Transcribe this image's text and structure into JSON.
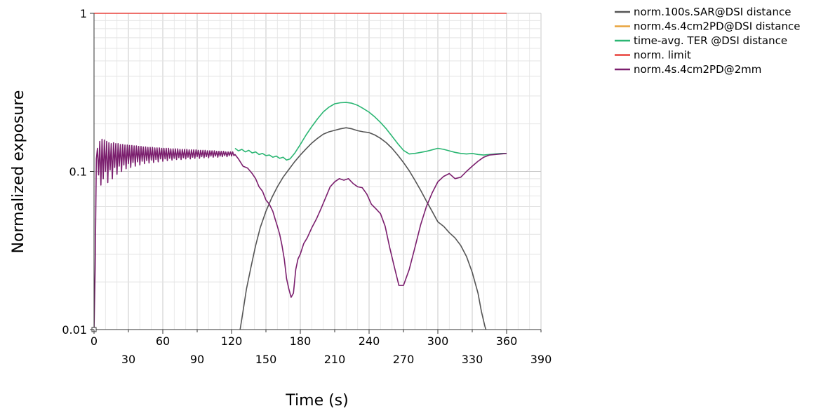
{
  "chart_data": {
    "type": "line",
    "xlabel": "Time (s)",
    "ylabel": "Normalized exposure",
    "xlim": [
      0,
      390
    ],
    "ylim": [
      0.01,
      1
    ],
    "yscale": "log",
    "grid": true,
    "legend_position": "top-right",
    "x_ticks_major": [
      0,
      60,
      120,
      180,
      240,
      300,
      360
    ],
    "x_ticks_minor": [
      30,
      90,
      150,
      210,
      270,
      330,
      390
    ],
    "y_ticks": [
      {
        "value": 0.01,
        "label": "0.01"
      },
      {
        "value": 0.1,
        "label": "0.1"
      },
      {
        "value": 1,
        "label": "1"
      }
    ],
    "series": [
      {
        "name": "norm.100s.SAR@DSI distance",
        "color": "#555555",
        "x": [
          127,
          130,
          133,
          137,
          141,
          145,
          150,
          155,
          160,
          165,
          170,
          175,
          180,
          185,
          190,
          195,
          200,
          205,
          210,
          215,
          220,
          225,
          230,
          235,
          240,
          245,
          250,
          255,
          260,
          265,
          270,
          275,
          280,
          285,
          290,
          295,
          300,
          305,
          310,
          315,
          320,
          325,
          330,
          335,
          338,
          341,
          344
        ],
        "y": [
          0.0095,
          0.013,
          0.018,
          0.025,
          0.034,
          0.044,
          0.056,
          0.068,
          0.08,
          0.092,
          0.103,
          0.115,
          0.127,
          0.139,
          0.151,
          0.162,
          0.172,
          0.178,
          0.182,
          0.186,
          0.189,
          0.186,
          0.181,
          0.178,
          0.176,
          0.17,
          0.162,
          0.152,
          0.14,
          0.127,
          0.114,
          0.101,
          0.088,
          0.076,
          0.065,
          0.056,
          0.048,
          0.045,
          0.041,
          0.038,
          0.034,
          0.029,
          0.023,
          0.017,
          0.013,
          0.0105,
          0.009
        ]
      },
      {
        "name": "norm.4s.4cm2PD@DSI distance",
        "color": "#e8a33d",
        "x": [],
        "y": []
      },
      {
        "name": "time-avg. TER @DSI distance",
        "color": "#2bb673",
        "x": [
          123,
          126,
          129,
          132,
          135,
          138,
          141,
          144,
          147,
          150,
          153,
          156,
          159,
          162,
          165,
          168,
          171,
          175,
          180,
          185,
          190,
          195,
          200,
          205,
          210,
          215,
          220,
          225,
          230,
          235,
          240,
          245,
          250,
          255,
          260,
          265,
          270,
          275,
          280,
          285,
          290,
          295,
          300,
          305,
          310,
          315,
          320,
          325,
          330,
          335,
          340,
          345,
          350,
          355,
          360
        ],
        "y": [
          0.14,
          0.135,
          0.138,
          0.133,
          0.136,
          0.131,
          0.133,
          0.128,
          0.13,
          0.126,
          0.127,
          0.123,
          0.125,
          0.121,
          0.123,
          0.118,
          0.12,
          0.13,
          0.148,
          0.17,
          0.192,
          0.215,
          0.238,
          0.255,
          0.268,
          0.272,
          0.273,
          0.27,
          0.262,
          0.25,
          0.237,
          0.221,
          0.204,
          0.186,
          0.167,
          0.15,
          0.136,
          0.129,
          0.13,
          0.132,
          0.134,
          0.137,
          0.14,
          0.138,
          0.135,
          0.132,
          0.13,
          0.129,
          0.13,
          0.128,
          0.127,
          0.128,
          0.129,
          0.13,
          0.13
        ]
      },
      {
        "name": "norm. limit",
        "color": "#e8403a",
        "x": [
          0,
          360
        ],
        "y": [
          1,
          1
        ]
      },
      {
        "name": "norm.4s.4cm2PD@2mm",
        "color": "#7b1f6e",
        "x": [
          0,
          1,
          2,
          3,
          4,
          5,
          6,
          7,
          8,
          9,
          10,
          11,
          12,
          13,
          14,
          15,
          16,
          17,
          18,
          19,
          20,
          21,
          22,
          23,
          24,
          25,
          26,
          27,
          28,
          29,
          30,
          31,
          32,
          33,
          34,
          35,
          36,
          37,
          38,
          39,
          40,
          41,
          42,
          43,
          44,
          45,
          46,
          47,
          48,
          49,
          50,
          51,
          52,
          53,
          54,
          55,
          56,
          57,
          58,
          59,
          60,
          61,
          62,
          63,
          64,
          65,
          66,
          67,
          68,
          69,
          70,
          71,
          72,
          73,
          74,
          75,
          76,
          77,
          78,
          79,
          80,
          81,
          82,
          83,
          84,
          85,
          86,
          87,
          88,
          89,
          90,
          91,
          92,
          93,
          94,
          95,
          96,
          97,
          98,
          99,
          100,
          101,
          102,
          103,
          104,
          105,
          106,
          107,
          108,
          109,
          110,
          111,
          112,
          113,
          114,
          115,
          116,
          117,
          118,
          119,
          120,
          121,
          122,
          123,
          126,
          130,
          134,
          138,
          141,
          144,
          147,
          150,
          153,
          156,
          158,
          160,
          162,
          164,
          166,
          168,
          170,
          172,
          174,
          176,
          178,
          180,
          183,
          186,
          190,
          194,
          198,
          202,
          206,
          210,
          214,
          218,
          222,
          226,
          230,
          234,
          238,
          242,
          246,
          250,
          254,
          258,
          262,
          266,
          270,
          275,
          280,
          285,
          290,
          295,
          300,
          305,
          310,
          315,
          320,
          325,
          330,
          335,
          340,
          345,
          350,
          355,
          360
        ],
        "y": [
          0.01,
          0.024,
          0.12,
          0.14,
          0.095,
          0.155,
          0.082,
          0.16,
          0.09,
          0.158,
          0.1,
          0.155,
          0.085,
          0.152,
          0.102,
          0.15,
          0.09,
          0.152,
          0.106,
          0.15,
          0.096,
          0.15,
          0.108,
          0.148,
          0.1,
          0.148,
          0.11,
          0.147,
          0.104,
          0.147,
          0.112,
          0.146,
          0.106,
          0.146,
          0.114,
          0.145,
          0.108,
          0.145,
          0.115,
          0.144,
          0.11,
          0.144,
          0.116,
          0.143,
          0.112,
          0.143,
          0.117,
          0.142,
          0.113,
          0.142,
          0.118,
          0.142,
          0.114,
          0.141,
          0.119,
          0.141,
          0.115,
          0.141,
          0.12,
          0.14,
          0.116,
          0.14,
          0.12,
          0.14,
          0.117,
          0.14,
          0.121,
          0.139,
          0.118,
          0.139,
          0.121,
          0.139,
          0.119,
          0.139,
          0.122,
          0.138,
          0.119,
          0.138,
          0.122,
          0.138,
          0.12,
          0.138,
          0.123,
          0.137,
          0.12,
          0.137,
          0.123,
          0.137,
          0.121,
          0.137,
          0.124,
          0.136,
          0.121,
          0.136,
          0.124,
          0.136,
          0.122,
          0.136,
          0.124,
          0.135,
          0.122,
          0.135,
          0.125,
          0.135,
          0.123,
          0.135,
          0.125,
          0.134,
          0.123,
          0.134,
          0.125,
          0.134,
          0.124,
          0.134,
          0.126,
          0.133,
          0.124,
          0.133,
          0.126,
          0.133,
          0.125,
          0.133,
          0.126,
          0.128,
          0.12,
          0.108,
          0.105,
          0.097,
          0.09,
          0.08,
          0.075,
          0.066,
          0.062,
          0.056,
          0.05,
          0.045,
          0.04,
          0.034,
          0.028,
          0.021,
          0.018,
          0.016,
          0.017,
          0.024,
          0.028,
          0.03,
          0.035,
          0.038,
          0.044,
          0.05,
          0.058,
          0.068,
          0.08,
          0.086,
          0.09,
          0.088,
          0.09,
          0.084,
          0.08,
          0.079,
          0.072,
          0.062,
          0.058,
          0.054,
          0.045,
          0.033,
          0.025,
          0.019,
          0.019,
          0.024,
          0.033,
          0.046,
          0.06,
          0.073,
          0.086,
          0.093,
          0.097,
          0.09,
          0.092,
          0.1,
          0.108,
          0.116,
          0.123,
          0.127,
          0.128,
          0.129,
          0.13
        ]
      }
    ]
  }
}
